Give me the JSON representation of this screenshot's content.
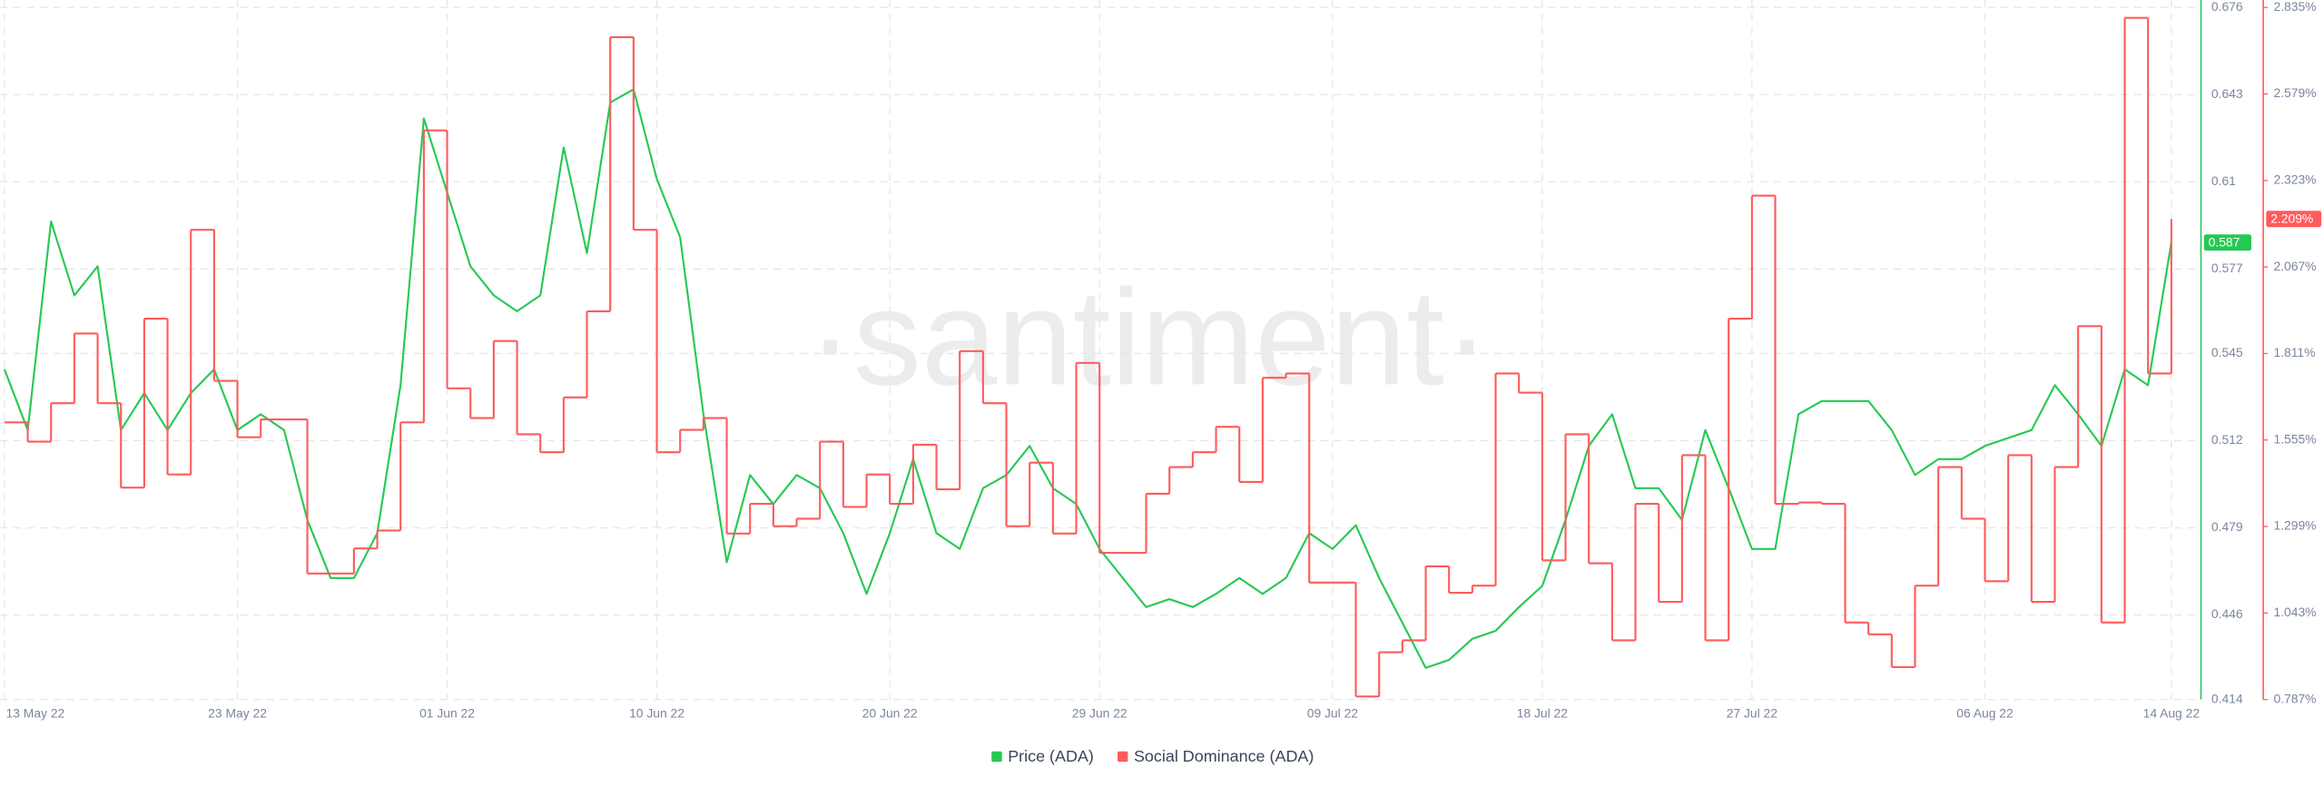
{
  "chart_data": {
    "type": "line",
    "watermark": "·santiment·",
    "x": [
      "2022-05-13",
      "2022-05-14",
      "2022-05-15",
      "2022-05-16",
      "2022-05-17",
      "2022-05-18",
      "2022-05-19",
      "2022-05-20",
      "2022-05-21",
      "2022-05-22",
      "2022-05-23",
      "2022-05-24",
      "2022-05-25",
      "2022-05-26",
      "2022-05-27",
      "2022-05-28",
      "2022-05-29",
      "2022-05-30",
      "2022-05-31",
      "2022-06-01",
      "2022-06-02",
      "2022-06-03",
      "2022-06-04",
      "2022-06-05",
      "2022-06-06",
      "2022-06-07",
      "2022-06-08",
      "2022-06-09",
      "2022-06-10",
      "2022-06-11",
      "2022-06-12",
      "2022-06-13",
      "2022-06-14",
      "2022-06-15",
      "2022-06-16",
      "2022-06-17",
      "2022-06-18",
      "2022-06-19",
      "2022-06-20",
      "2022-06-21",
      "2022-06-22",
      "2022-06-23",
      "2022-06-24",
      "2022-06-25",
      "2022-06-26",
      "2022-06-27",
      "2022-06-28",
      "2022-06-29",
      "2022-06-30",
      "2022-07-01",
      "2022-07-02",
      "2022-07-03",
      "2022-07-04",
      "2022-07-05",
      "2022-07-06",
      "2022-07-07",
      "2022-07-08",
      "2022-07-09",
      "2022-07-10",
      "2022-07-11",
      "2022-07-12",
      "2022-07-13",
      "2022-07-14",
      "2022-07-15",
      "2022-07-16",
      "2022-07-17",
      "2022-07-18",
      "2022-07-19",
      "2022-07-20",
      "2022-07-21",
      "2022-07-22",
      "2022-07-23",
      "2022-07-24",
      "2022-07-25",
      "2022-07-26",
      "2022-07-27",
      "2022-07-28",
      "2022-07-29",
      "2022-07-30",
      "2022-07-31",
      "2022-08-01",
      "2022-08-02",
      "2022-08-03",
      "2022-08-04",
      "2022-08-05",
      "2022-08-06",
      "2022-08-07",
      "2022-08-08",
      "2022-08-09",
      "2022-08-10",
      "2022-08-11",
      "2022-08-12",
      "2022-08-13",
      "2022-08-14"
    ],
    "xlim": [
      "2022-05-13",
      "2022-08-14"
    ],
    "xticks": [
      {
        "value": "2022-05-13",
        "label": "13 May 22"
      },
      {
        "value": "2022-05-23",
        "label": "23 May 22"
      },
      {
        "value": "2022-06-01",
        "label": "01 Jun 22"
      },
      {
        "value": "2022-06-10",
        "label": "10 Jun 22"
      },
      {
        "value": "2022-06-20",
        "label": "20 Jun 22"
      },
      {
        "value": "2022-06-29",
        "label": "29 Jun 22"
      },
      {
        "value": "2022-07-09",
        "label": "09 Jul 22"
      },
      {
        "value": "2022-07-18",
        "label": "18 Jul 22"
      },
      {
        "value": "2022-07-27",
        "label": "27 Jul 22"
      },
      {
        "value": "2022-08-06",
        "label": "06 Aug 22"
      },
      {
        "value": "2022-08-14",
        "label": "14 Aug 22"
      }
    ],
    "ylim": [
      0.414,
      0.676
    ],
    "yticks": [
      0.414,
      0.446,
      0.479,
      0.512,
      0.545,
      0.577,
      0.61,
      0.643,
      0.676
    ],
    "y2lim": [
      0.787,
      2.835
    ],
    "y2ticks": [
      {
        "value": 0.787,
        "label": "0.787%"
      },
      {
        "value": 1.043,
        "label": "1.043%"
      },
      {
        "value": 1.299,
        "label": "1.299%"
      },
      {
        "value": 1.555,
        "label": "1.555%"
      },
      {
        "value": 1.811,
        "label": "1.811%"
      },
      {
        "value": 2.067,
        "label": "2.067%"
      },
      {
        "value": 2.323,
        "label": "2.323%"
      },
      {
        "value": 2.579,
        "label": "2.579%"
      },
      {
        "value": 2.835,
        "label": "2.835%"
      }
    ],
    "grid": true,
    "legend": "bottom",
    "series": [
      {
        "name": "Price (ADA)",
        "color": "#26c953",
        "axis": "y",
        "values": [
          0.539,
          0.516,
          0.595,
          0.567,
          0.578,
          0.516,
          0.53,
          0.516,
          0.53,
          0.539,
          0.516,
          0.522,
          0.516,
          0.482,
          0.46,
          0.46,
          0.477,
          0.533,
          0.634,
          0.606,
          0.578,
          0.567,
          0.561,
          0.567,
          0.623,
          0.583,
          0.64,
          0.645,
          0.611,
          0.589,
          0.522,
          0.466,
          0.499,
          0.488,
          0.499,
          0.494,
          0.477,
          0.454,
          0.477,
          0.505,
          0.477,
          0.471,
          0.494,
          0.499,
          0.51,
          0.494,
          0.488,
          0.471,
          0.46,
          0.449,
          0.452,
          0.449,
          0.454,
          0.46,
          0.454,
          0.46,
          0.477,
          0.471,
          0.48,
          0.46,
          0.443,
          0.426,
          0.429,
          0.437,
          0.44,
          0.449,
          0.457,
          0.482,
          0.51,
          0.522,
          0.494,
          0.494,
          0.482,
          0.516,
          0.494,
          0.471,
          0.471,
          0.522,
          0.527,
          0.527,
          0.527,
          0.516,
          0.499,
          0.505,
          0.505,
          0.51,
          0.513,
          0.516,
          0.533,
          0.522,
          0.51,
          0.539,
          0.533,
          0.587
        ],
        "value_labels": [
          null,
          null,
          null,
          null,
          null,
          null,
          null,
          null,
          null,
          null,
          null,
          null,
          null,
          null,
          null,
          null,
          null,
          null,
          null,
          null,
          null,
          null,
          null,
          null,
          null,
          null,
          null,
          null,
          null,
          null,
          null,
          null,
          null,
          null,
          null,
          null,
          null,
          null,
          null,
          null,
          null,
          null,
          null,
          null,
          null,
          null,
          null,
          null,
          null,
          null,
          null,
          null,
          null,
          null,
          null,
          null,
          null,
          null,
          null,
          null,
          null,
          null,
          null,
          null,
          null,
          null,
          null,
          null,
          null,
          null,
          null,
          null,
          null,
          null,
          null,
          null,
          null,
          null,
          null,
          null,
          null,
          null,
          null,
          null,
          null,
          null,
          null,
          null,
          null,
          null,
          null,
          null,
          null,
          "0.587"
        ]
      },
      {
        "name": "Social Dominance (ADA)",
        "color": "#ff5b5b",
        "axis": "y2",
        "interpolation": "step",
        "values": [
          1.607,
          1.55,
          1.664,
          1.87,
          1.664,
          1.414,
          1.914,
          1.453,
          2.177,
          1.73,
          1.563,
          1.616,
          1.616,
          1.16,
          1.16,
          1.234,
          1.287,
          1.607,
          2.471,
          1.708,
          1.62,
          1.848,
          1.572,
          1.519,
          1.681,
          1.936,
          2.747,
          2.177,
          1.519,
          1.585,
          1.62,
          1.278,
          1.366,
          1.3,
          1.322,
          1.55,
          1.357,
          1.453,
          1.366,
          1.541,
          1.409,
          1.818,
          1.664,
          1.3,
          1.488,
          1.278,
          1.783,
          1.221,
          1.221,
          1.396,
          1.475,
          1.519,
          1.594,
          1.431,
          1.739,
          1.752,
          1.133,
          1.133,
          0.796,
          0.927,
          0.962,
          1.181,
          1.103,
          1.124,
          1.752,
          1.695,
          1.199,
          1.572,
          1.19,
          0.962,
          1.366,
          1.076,
          1.51,
          0.962,
          1.914,
          2.278,
          1.366,
          1.37,
          1.366,
          1.015,
          0.98,
          0.883,
          1.124,
          1.475,
          1.322,
          1.137,
          1.51,
          1.076,
          1.475,
          1.892,
          1.015,
          2.804,
          1.752,
          2.209
        ],
        "value_labels": [
          null,
          null,
          null,
          null,
          null,
          null,
          null,
          null,
          null,
          null,
          null,
          null,
          null,
          null,
          null,
          null,
          null,
          null,
          null,
          null,
          null,
          null,
          null,
          null,
          null,
          null,
          null,
          null,
          null,
          null,
          null,
          null,
          null,
          null,
          null,
          null,
          null,
          null,
          null,
          null,
          null,
          null,
          null,
          null,
          null,
          null,
          null,
          null,
          null,
          null,
          null,
          null,
          null,
          null,
          null,
          null,
          null,
          null,
          null,
          null,
          null,
          null,
          null,
          null,
          null,
          null,
          null,
          null,
          null,
          null,
          null,
          null,
          null,
          null,
          null,
          null,
          null,
          null,
          null,
          null,
          null,
          null,
          null,
          null,
          null,
          null,
          null,
          null,
          null,
          null,
          null,
          null,
          null,
          "2.209%"
        ]
      }
    ]
  }
}
